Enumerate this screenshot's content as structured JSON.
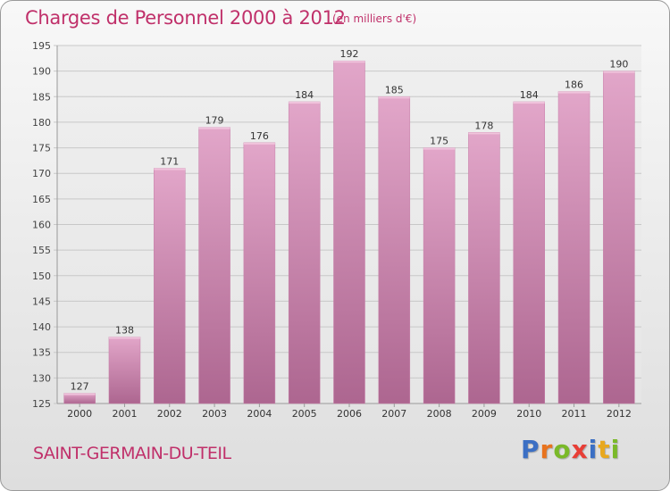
{
  "header": {
    "title": "Charges de Personnel 2000 à 2012",
    "subtitle": "(en milliers d'€)"
  },
  "footer": {
    "place": "SAINT-GERMAIN-DU-TEIL",
    "logo_text": "Proxiti",
    "logo_letters": [
      {
        "ch": "P",
        "color": "#3b6fc4"
      },
      {
        "ch": "r",
        "color": "#e8731e"
      },
      {
        "ch": "o",
        "color": "#7ab929"
      },
      {
        "ch": "x",
        "color": "#e83e36"
      },
      {
        "ch": "i",
        "color": "#3b6fc4"
      },
      {
        "ch": "t",
        "color": "#e8a81e"
      },
      {
        "ch": "i",
        "color": "#7ab929"
      }
    ]
  },
  "chart_data": {
    "type": "bar",
    "categories": [
      "2000",
      "2001",
      "2002",
      "2003",
      "2004",
      "2005",
      "2006",
      "2007",
      "2008",
      "2009",
      "2010",
      "2011",
      "2012"
    ],
    "values": [
      127,
      138,
      171,
      179,
      176,
      184,
      192,
      185,
      175,
      178,
      184,
      186,
      190
    ],
    "ylim": [
      125,
      195
    ],
    "yticks": [
      125,
      130,
      135,
      140,
      145,
      150,
      155,
      160,
      165,
      170,
      175,
      180,
      185,
      190,
      195
    ],
    "grid": true,
    "bar_color": "#d98cb7",
    "bar_color_dark": "#b06590",
    "title_color": "#c0306a"
  }
}
